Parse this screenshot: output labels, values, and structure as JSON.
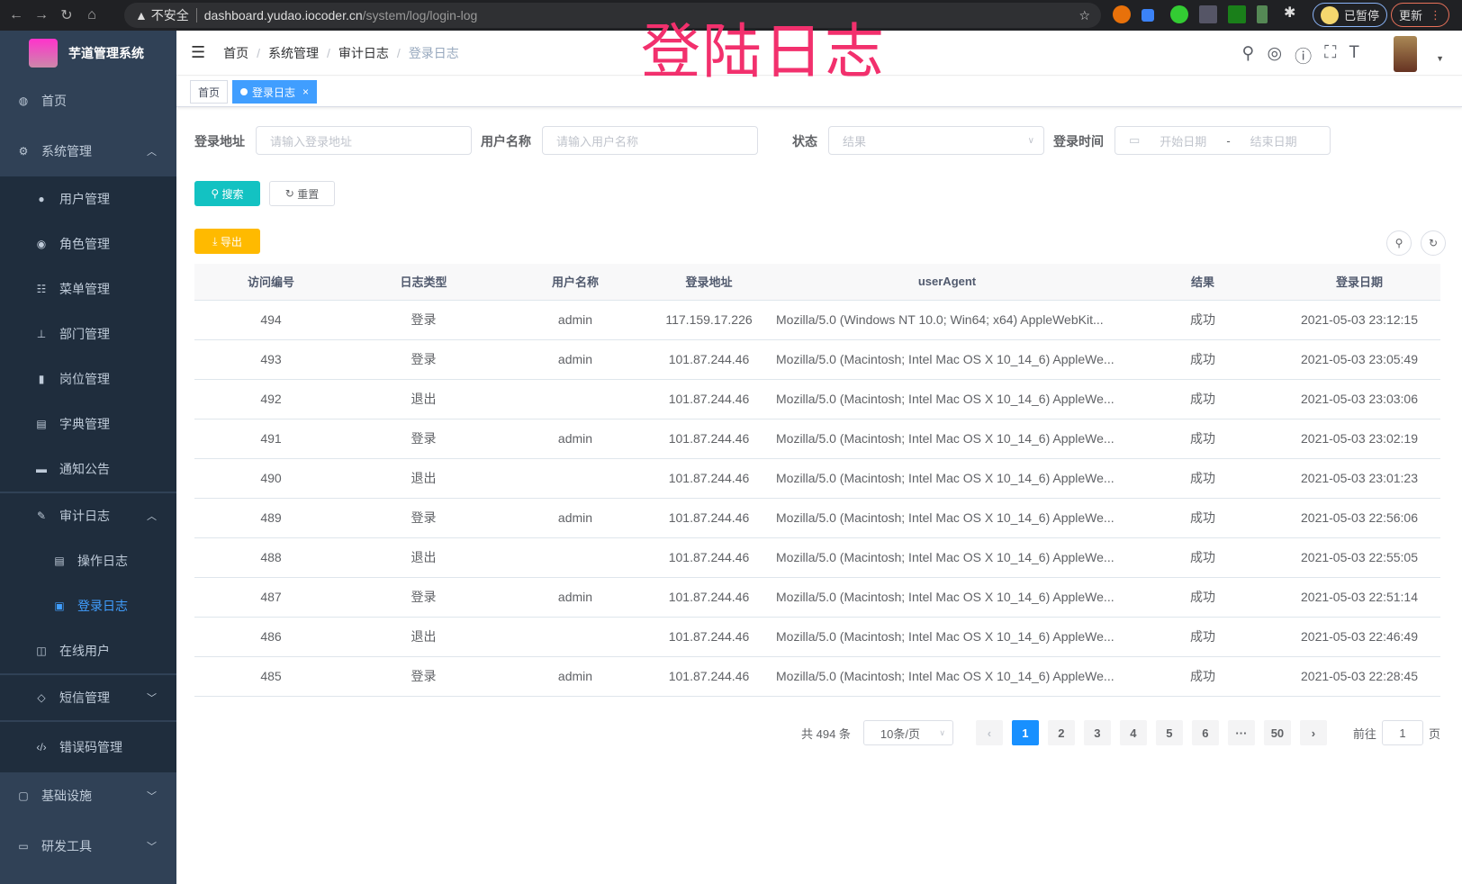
{
  "browser": {
    "security": "不安全",
    "url_host": "dashboard.yudao.iocoder.cn",
    "url_path": "/system/log/login-log",
    "paused": "已暂停",
    "update": "更新"
  },
  "watermark": "登陆日志",
  "sidebar": {
    "title": "芋道管理系统",
    "items": [
      {
        "label": "首页",
        "icon": "dashboard-icon"
      },
      {
        "label": "系统管理",
        "icon": "gear-icon",
        "arrow": "︿"
      },
      {
        "label": "用户管理",
        "icon": "user-icon"
      },
      {
        "label": "角色管理",
        "icon": "role-icon"
      },
      {
        "label": "菜单管理",
        "icon": "menu-icon"
      },
      {
        "label": "部门管理",
        "icon": "tree-icon"
      },
      {
        "label": "岗位管理",
        "icon": "post-icon"
      },
      {
        "label": "字典管理",
        "icon": "dict-icon"
      },
      {
        "label": "通知公告",
        "icon": "message-icon"
      },
      {
        "label": "审计日志",
        "icon": "log-icon",
        "arrow": "︿"
      },
      {
        "label": "操作日志",
        "icon": "form-icon"
      },
      {
        "label": "登录日志",
        "icon": "logininfor-icon"
      },
      {
        "label": "在线用户",
        "icon": "online-icon"
      },
      {
        "label": "短信管理",
        "icon": "shield-icon",
        "arrow": "﹀"
      },
      {
        "label": "错误码管理",
        "icon": "code-icon"
      },
      {
        "label": "基础设施",
        "icon": "monitor-icon",
        "arrow": "﹀"
      },
      {
        "label": "研发工具",
        "icon": "tool-icon",
        "arrow": "﹀"
      }
    ]
  },
  "breadcrumb": [
    "首页",
    "系统管理",
    "审计日志",
    "登录日志"
  ],
  "tags": {
    "home": "首页",
    "current": "登录日志",
    "close": "×"
  },
  "filters": {
    "address_label": "登录地址",
    "address_placeholder": "请输入登录地址",
    "user_label": "用户名称",
    "user_placeholder": "请输入用户名称",
    "status_label": "状态",
    "status_placeholder": "结果",
    "time_label": "登录时间",
    "start_placeholder": "开始日期",
    "sep": "-",
    "end_placeholder": "结束日期"
  },
  "buttons": {
    "search": "搜索",
    "reset": "重置",
    "export": "导出"
  },
  "table": {
    "headers": [
      "访问编号",
      "日志类型",
      "用户名称",
      "登录地址",
      "userAgent",
      "结果",
      "登录日期"
    ],
    "rows": [
      [
        "494",
        "登录",
        "admin",
        "117.159.17.226",
        "Mozilla/5.0 (Windows NT 10.0; Win64; x64) AppleWebKit...",
        "成功",
        "2021-05-03 23:12:15"
      ],
      [
        "493",
        "登录",
        "admin",
        "101.87.244.46",
        "Mozilla/5.0 (Macintosh; Intel Mac OS X 10_14_6) AppleWe...",
        "成功",
        "2021-05-03 23:05:49"
      ],
      [
        "492",
        "退出",
        "",
        "101.87.244.46",
        "Mozilla/5.0 (Macintosh; Intel Mac OS X 10_14_6) AppleWe...",
        "成功",
        "2021-05-03 23:03:06"
      ],
      [
        "491",
        "登录",
        "admin",
        "101.87.244.46",
        "Mozilla/5.0 (Macintosh; Intel Mac OS X 10_14_6) AppleWe...",
        "成功",
        "2021-05-03 23:02:19"
      ],
      [
        "490",
        "退出",
        "",
        "101.87.244.46",
        "Mozilla/5.0 (Macintosh; Intel Mac OS X 10_14_6) AppleWe...",
        "成功",
        "2021-05-03 23:01:23"
      ],
      [
        "489",
        "登录",
        "admin",
        "101.87.244.46",
        "Mozilla/5.0 (Macintosh; Intel Mac OS X 10_14_6) AppleWe...",
        "成功",
        "2021-05-03 22:56:06"
      ],
      [
        "488",
        "退出",
        "",
        "101.87.244.46",
        "Mozilla/5.0 (Macintosh; Intel Mac OS X 10_14_6) AppleWe...",
        "成功",
        "2021-05-03 22:55:05"
      ],
      [
        "487",
        "登录",
        "admin",
        "101.87.244.46",
        "Mozilla/5.0 (Macintosh; Intel Mac OS X 10_14_6) AppleWe...",
        "成功",
        "2021-05-03 22:51:14"
      ],
      [
        "486",
        "退出",
        "",
        "101.87.244.46",
        "Mozilla/5.0 (Macintosh; Intel Mac OS X 10_14_6) AppleWe...",
        "成功",
        "2021-05-03 22:46:49"
      ],
      [
        "485",
        "登录",
        "admin",
        "101.87.244.46",
        "Mozilla/5.0 (Macintosh; Intel Mac OS X 10_14_6) AppleWe...",
        "成功",
        "2021-05-03 22:28:45"
      ]
    ]
  },
  "pagination": {
    "total": "共 494 条",
    "page_size": "10条/页",
    "pages": [
      "1",
      "2",
      "3",
      "4",
      "5",
      "6",
      "···",
      "50"
    ],
    "current": "1",
    "goto_label": "前往",
    "goto_value": "1",
    "goto_suffix": "页"
  },
  "colors": {
    "sidebar": "#304156",
    "accent": "#409eff",
    "search": "#13c2c2",
    "export": "#ffba00",
    "watermark": "#f2306d"
  }
}
